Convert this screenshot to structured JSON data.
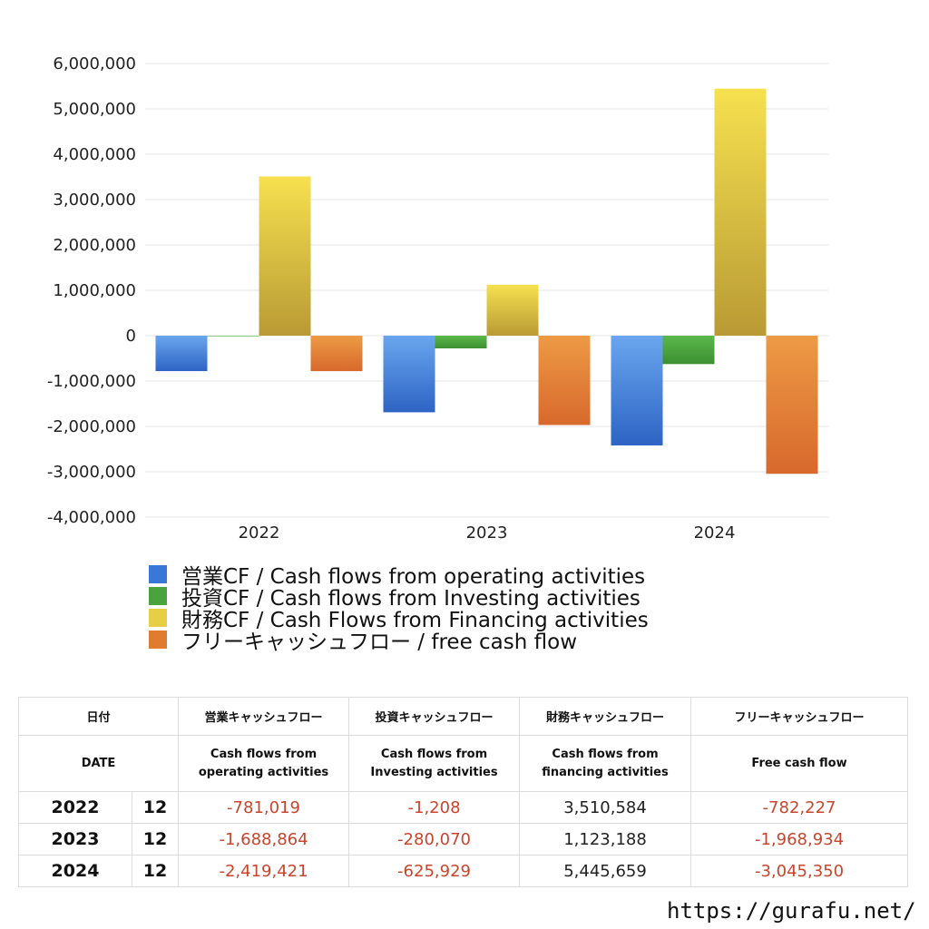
{
  "chart_data": {
    "type": "bar",
    "categories": [
      "2022",
      "2023",
      "2024"
    ],
    "ylim": [
      -4000000,
      6000000
    ],
    "yticks": [
      "6,000,000",
      "5,000,000",
      "4,000,000",
      "3,000,000",
      "2,000,000",
      "1,000,000",
      "0",
      "-1,000,000",
      "-2,000,000",
      "-3,000,000",
      "-4,000,000"
    ],
    "grid": true,
    "legend_position": "bottom",
    "series": [
      {
        "name": "営業CF / Cash flows from operating activities",
        "values": [
          -781019,
          -1688864,
          -2419421
        ],
        "color": "#3a78d8"
      },
      {
        "name": "投資CF / Cash flows from Investing activities",
        "values": [
          -1208,
          -280070,
          -625929
        ],
        "color": "#4aa33c"
      },
      {
        "name": "財務CF / Cash Flows from Financing activities",
        "values": [
          3510584,
          1123188,
          5445659
        ],
        "color": "#e6cf45"
      },
      {
        "name": "フリーキャッシュフロー / free cash flow",
        "values": [
          -782227,
          -1968934,
          -3045350
        ],
        "color": "#e07b30"
      }
    ]
  },
  "table": {
    "headers": {
      "date": "日付",
      "operating": "営業キャッシュフロー",
      "investing": "投資キャッシュフロー",
      "financing": "財務キャッシュフロー",
      "free": "フリーキャッシュフロー"
    },
    "subheaders": {
      "date": "DATE",
      "operating_1": "Cash flows from",
      "operating_2": "operating activities",
      "investing_1": "Cash flows from",
      "investing_2": "Investing activities",
      "financing_1": "Cash flows from",
      "financing_2": "financing activities",
      "free": "Free cash flow"
    },
    "rows": [
      {
        "year": "2022",
        "month": "12",
        "operating": "-781,019",
        "investing": "-1,208",
        "financing": "3,510,584",
        "free": "-782,227"
      },
      {
        "year": "2023",
        "month": "12",
        "operating": "-1,688,864",
        "investing": "-280,070",
        "financing": "1,123,188",
        "free": "-1,968,934"
      },
      {
        "year": "2024",
        "month": "12",
        "operating": "-2,419,421",
        "investing": "-625,929",
        "financing": "5,445,659",
        "free": "-3,045,350"
      }
    ]
  },
  "footer": {
    "url": "https://gurafu.net/"
  }
}
